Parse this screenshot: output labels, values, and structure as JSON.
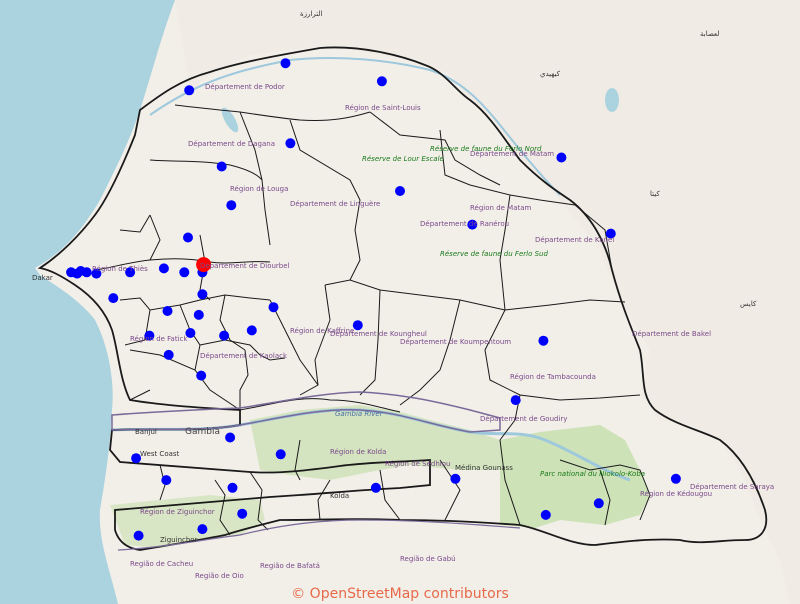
{
  "map": {
    "attribution": "© OpenStreetMap contributors",
    "colors": {
      "sea": "#aad3df",
      "land": "#f2efe9",
      "park": "#c8dfae",
      "boundary": "#1a1a1a",
      "river": "#9ec8dc",
      "marker": "#0000ff",
      "highlight": "#ff0000"
    },
    "labels": {
      "region_saint_louis": "Région de Saint-Louis",
      "dept_podor": "Département de Podor",
      "dept_dagana": "Département de Dagana",
      "region_louga": "Région de Louga",
      "dept_linguere": "Département de Linguère",
      "region_matam": "Région de Matam",
      "dept_matam": "Département de Matam",
      "dept_ranerou": "Département de Ranérou",
      "dept_kanel": "Département de Kanel",
      "dept_bakel": "Département de Bakel",
      "region_tambacounda": "Région de Tambacounda",
      "dept_goudiry": "Département de Goudiry",
      "region_kedougou": "Région de Kédougou",
      "dept_saraya": "Département de Saraya",
      "region_kaffrine": "Région de Kaffrine",
      "dept_koungheul": "Département de Koungheul",
      "dept_koumpentoum": "Département de Koumpentoum",
      "region_kolda": "Région de Kolda",
      "region_sedhiou": "Région de Sédhiou",
      "region_ziguinchor": "Région de Ziguinchor",
      "region_thies": "Région de Thiès",
      "region_fatick": "Région de Fatick",
      "dept_kaolack": "Département de Kaolack",
      "dept_diourbel": "Département de Diourbel",
      "reserve_lour": "Réserve de Lour Escale",
      "reserve_ferlo_nord": "Réserve de faune du Ferlo Nord",
      "reserve_ferlo_sud": "Réserve de faune du Ferlo Sud",
      "reserve_niokolo": "Parc national du Niokolo-Koba",
      "gambia": "Gambia",
      "gambia_river": "Gambia River",
      "west_coast": "West Coast",
      "banjul": "Banjul",
      "dakar": "Dakar",
      "kolda": "Kolda",
      "ziguinchor": "Ziguinchor",
      "medina_gounass": "Médina Gounass",
      "region_bafata": "Região de Bafatá",
      "region_oio": "Região de Oio",
      "region_gabu": "Região de Gabú",
      "region_cacheu": "Região de Cacheu",
      "mauritania_1": "الترارزة",
      "mauritania_2": "كيهيدي",
      "mauritania_3": "لعصابة",
      "mali_1": "كايس",
      "mali_2": "كيتا"
    },
    "markers": [
      {
        "id": "m1",
        "lon": -16.35,
        "lat": 16.18
      },
      {
        "id": "m2",
        "lon": -16.08,
        "lat": 15.59
      },
      {
        "id": "m3",
        "lon": -15.55,
        "lat": 16.39
      },
      {
        "id": "m4",
        "lon": -14.75,
        "lat": 16.25
      },
      {
        "id": "m5",
        "lon": -13.26,
        "lat": 15.66
      },
      {
        "id": "m6",
        "lon": -15.51,
        "lat": 15.77
      },
      {
        "id": "m7",
        "lon": -16.0,
        "lat": 15.29
      },
      {
        "id": "m8",
        "lon": -14.6,
        "lat": 15.4
      },
      {
        "id": "m9",
        "lon": -16.36,
        "lat": 15.04
      },
      {
        "id": "m10",
        "lon": -14.0,
        "lat": 15.14
      },
      {
        "id": "m11",
        "lon": -12.85,
        "lat": 15.07
      },
      {
        "id": "m12",
        "lon": -17.33,
        "lat": 14.77
      },
      {
        "id": "m13",
        "lon": -17.28,
        "lat": 14.76
      },
      {
        "id": "m14",
        "lon": -17.25,
        "lat": 14.78
      },
      {
        "id": "m15",
        "lon": -17.2,
        "lat": 14.77
      },
      {
        "id": "m16",
        "lon": -17.12,
        "lat": 14.76
      },
      {
        "id": "m17",
        "lon": -16.84,
        "lat": 14.77
      },
      {
        "id": "m18",
        "lon": -16.56,
        "lat": 14.8
      },
      {
        "id": "m19",
        "lon": -16.39,
        "lat": 14.77
      },
      {
        "id": "m20",
        "lon": -16.24,
        "lat": 14.77
      },
      {
        "id": "m21",
        "lon": -16.98,
        "lat": 14.57
      },
      {
        "id": "m22",
        "lon": -16.24,
        "lat": 14.6
      },
      {
        "id": "m23",
        "lon": -16.53,
        "lat": 14.47
      },
      {
        "id": "m24",
        "lon": -16.27,
        "lat": 14.44
      },
      {
        "id": "m25",
        "lon": -15.65,
        "lat": 14.5
      },
      {
        "id": "m26",
        "lon": -16.68,
        "lat": 14.28
      },
      {
        "id": "m27",
        "lon": -16.34,
        "lat": 14.3
      },
      {
        "id": "m28",
        "lon": -16.06,
        "lat": 14.28
      },
      {
        "id": "m29",
        "lon": -15.83,
        "lat": 14.32
      },
      {
        "id": "m30",
        "lon": -14.95,
        "lat": 14.36
      },
      {
        "id": "m31",
        "lon": -13.41,
        "lat": 14.24
      },
      {
        "id": "m32",
        "lon": -16.52,
        "lat": 14.13
      },
      {
        "id": "m33",
        "lon": -16.25,
        "lat": 13.97
      },
      {
        "id": "m34",
        "lon": -13.64,
        "lat": 13.78
      },
      {
        "id": "m35",
        "lon": -16.01,
        "lat": 13.49
      },
      {
        "id": "m36",
        "lon": -15.59,
        "lat": 13.36
      },
      {
        "id": "m37",
        "lon": -16.79,
        "lat": 13.33
      },
      {
        "id": "m38",
        "lon": -16.54,
        "lat": 13.16
      },
      {
        "id": "m39",
        "lon": -15.99,
        "lat": 13.1
      },
      {
        "id": "m40",
        "lon": -14.8,
        "lat": 13.1
      },
      {
        "id": "m41",
        "lon": -14.14,
        "lat": 13.17
      },
      {
        "id": "m42",
        "lon": -12.31,
        "lat": 13.17
      },
      {
        "id": "m43",
        "lon": -12.95,
        "lat": 12.98
      },
      {
        "id": "m44",
        "lon": -13.39,
        "lat": 12.89
      },
      {
        "id": "m45",
        "lon": -15.91,
        "lat": 12.9
      },
      {
        "id": "m46",
        "lon": -16.24,
        "lat": 12.78
      },
      {
        "id": "m47",
        "lon": -16.77,
        "lat": 12.73
      }
    ],
    "highlight_marker": {
      "id": "h1",
      "lon": -16.23,
      "lat": 14.83
    }
  }
}
